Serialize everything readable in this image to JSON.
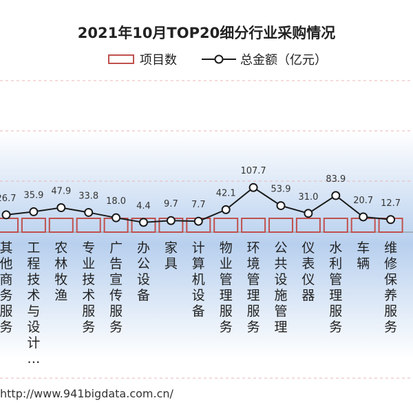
{
  "chart_data": {
    "type": "bar",
    "title": "2021年10月TOP20细分行业采购情况",
    "legend": {
      "bar_label": "项目数",
      "line_label": "总金额（亿元）"
    },
    "categories": [
      "其他商务服务",
      "工程技术与设计…",
      "农林牧渔",
      "专业技术服务",
      "广告宣传服务",
      "办公设备",
      "家具",
      "计算机设备",
      "物业管理服务",
      "环境管理服务",
      "公共设施管理",
      "仪表仪器",
      "水利管理服务",
      "车辆",
      "维修保养服务"
    ],
    "series": [
      {
        "name": "总金额（亿元）",
        "type": "line",
        "values": [
          26.7,
          35.9,
          47.9,
          33.8,
          18.0,
          4.4,
          9.7,
          7.7,
          42.1,
          107.7,
          53.9,
          31.0,
          83.9,
          20.7,
          12.7
        ]
      },
      {
        "name": "项目数",
        "type": "bar"
      }
    ],
    "value_labels": [
      "26.7",
      "35.9",
      "47.9",
      "33.8",
      "18.0",
      "4.4",
      "9.7",
      "7.7",
      "42.1",
      "107.7",
      "53.9",
      "31.0",
      "83.9",
      "20.7",
      "12.7"
    ],
    "colors": {
      "bar_border": "#c0504d",
      "line": "#1a1a1a",
      "band_top": "#ffffff",
      "band_mid": "#b8d0ee",
      "grid": "#e8b4b4"
    }
  },
  "source": "http://www.941bigdata.com.cn/"
}
